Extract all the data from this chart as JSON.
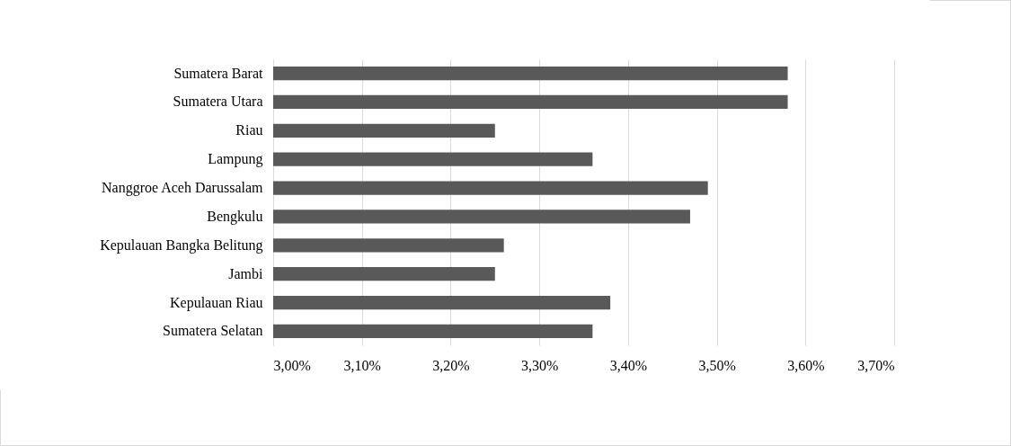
{
  "chart_data": {
    "type": "bar",
    "orientation": "horizontal",
    "categories": [
      "Sumatera Barat",
      "Sumatera Utara",
      "Riau",
      "Lampung",
      "Nanggroe Aceh Darussalam",
      "Bengkulu",
      "Kepulauan Bangka Belitung",
      "Jambi",
      "Kepulauan Riau",
      "Sumatera Selatan"
    ],
    "values": [
      3.58,
      3.58,
      3.25,
      3.36,
      3.49,
      3.47,
      3.26,
      3.25,
      3.38,
      3.36
    ],
    "color": "#595959",
    "xlim": [
      3.0,
      3.7
    ],
    "xticks": [
      {
        "value": 3.0,
        "label": "3,00%"
      },
      {
        "value": 3.1,
        "label": "3,10%"
      },
      {
        "value": 3.2,
        "label": "3,20%"
      },
      {
        "value": 3.3,
        "label": "3,30%"
      },
      {
        "value": 3.4,
        "label": "3,40%"
      },
      {
        "value": 3.5,
        "label": "3,50%"
      },
      {
        "value": 3.6,
        "label": "3,60%"
      },
      {
        "value": 3.7,
        "label": "3,70%"
      }
    ],
    "grid": "x"
  }
}
